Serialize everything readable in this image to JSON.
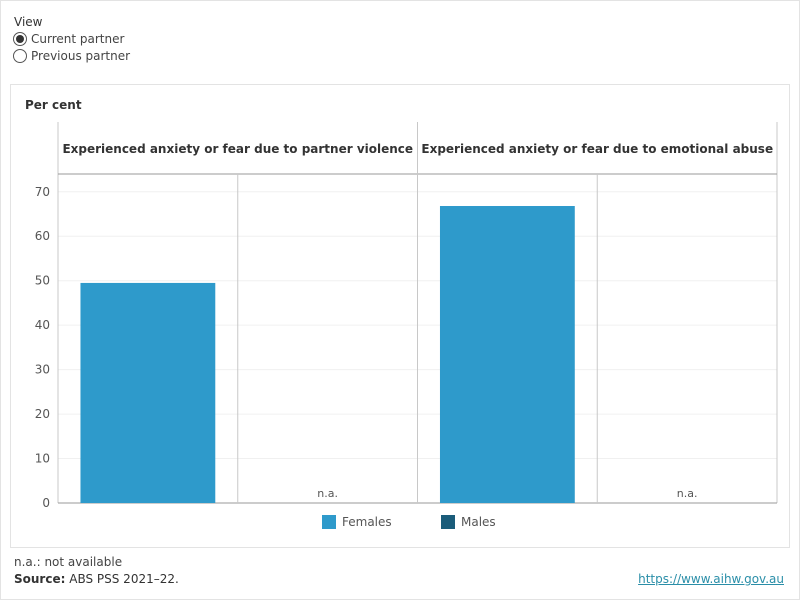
{
  "view": {
    "label": "View",
    "options": [
      {
        "label": "Current partner",
        "selected": true
      },
      {
        "label": "Previous partner",
        "selected": false
      }
    ]
  },
  "chart_data": {
    "type": "bar",
    "ylabel": "Per cent",
    "ylim": [
      0,
      74
    ],
    "yticks": [
      0,
      10,
      20,
      30,
      40,
      50,
      60,
      70
    ],
    "grid": true,
    "panels": [
      {
        "title": "Experienced anxiety or fear due to partner violence"
      },
      {
        "title": "Experienced anxiety or fear due to emotional abuse"
      }
    ],
    "categories": [
      "Females",
      "Males"
    ],
    "series": [
      {
        "name": "Females",
        "color": "#2e9acb",
        "values": [
          49.5,
          66.8
        ]
      },
      {
        "name": "Males",
        "color": "#1a5c7a",
        "values": [
          null,
          null
        ]
      }
    ],
    "missing_label": "n.a.",
    "legend_position": "bottom"
  },
  "footnote": "n.a.: not available",
  "source": {
    "label": "Source:",
    "text": "ABS PSS 2021–22."
  },
  "url": "https://www.aihw.gov.au"
}
